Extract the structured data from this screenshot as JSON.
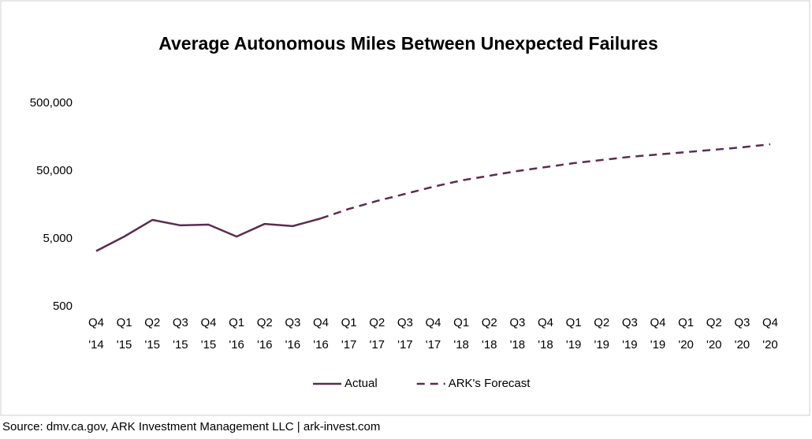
{
  "chart_data": {
    "type": "line",
    "title": "Average Autonomous Miles Between Unexpected Failures",
    "source": "Source: dmv.ca.gov, ARK Investment Management LLC | ark-invest.com",
    "categories": [
      [
        "Q4",
        "'14"
      ],
      [
        "Q1",
        "'15"
      ],
      [
        "Q2",
        "'15"
      ],
      [
        "Q3",
        "'15"
      ],
      [
        "Q4",
        "'15"
      ],
      [
        "Q1",
        "'16"
      ],
      [
        "Q2",
        "'16"
      ],
      [
        "Q3",
        "'16"
      ],
      [
        "Q4",
        "'16"
      ],
      [
        "Q1",
        "'17"
      ],
      [
        "Q2",
        "'17"
      ],
      [
        "Q3",
        "'17"
      ],
      [
        "Q4",
        "'17"
      ],
      [
        "Q1",
        "'18"
      ],
      [
        "Q2",
        "'18"
      ],
      [
        "Q3",
        "'18"
      ],
      [
        "Q4",
        "'18"
      ],
      [
        "Q1",
        "'19"
      ],
      [
        "Q2",
        "'19"
      ],
      [
        "Q3",
        "'19"
      ],
      [
        "Q4",
        "'19"
      ],
      [
        "Q1",
        "'20"
      ],
      [
        "Q2",
        "'20"
      ],
      [
        "Q3",
        "'20"
      ],
      [
        "Q4",
        "'20"
      ]
    ],
    "series": [
      {
        "name": "Actual",
        "color": "#5b2c4f",
        "dash": false,
        "values": [
          3300,
          5400,
          9500,
          7900,
          8100,
          5400,
          8300,
          7700,
          10000,
          null,
          null,
          null,
          null,
          null,
          null,
          null,
          null,
          null,
          null,
          null,
          null,
          null,
          null,
          null,
          null
        ]
      },
      {
        "name": "ARK's Forecast",
        "color": "#5b2c4f",
        "dash": true,
        "values": [
          null,
          null,
          null,
          null,
          null,
          null,
          null,
          null,
          10000,
          13800,
          18100,
          23000,
          29300,
          36300,
          42600,
          50000,
          57100,
          65300,
          72700,
          81000,
          87700,
          95000,
          103000,
          112000,
          124000
        ]
      }
    ],
    "log_scale": true,
    "ylim": [
      500,
      500000
    ],
    "yticks": [
      500,
      {
        "value": 5000,
        "label": "5,000"
      },
      {
        "value": 50000,
        "label": "50,000"
      },
      {
        "value": 500000,
        "label": "500,000"
      }
    ],
    "grid": false,
    "legend": "bottom"
  }
}
